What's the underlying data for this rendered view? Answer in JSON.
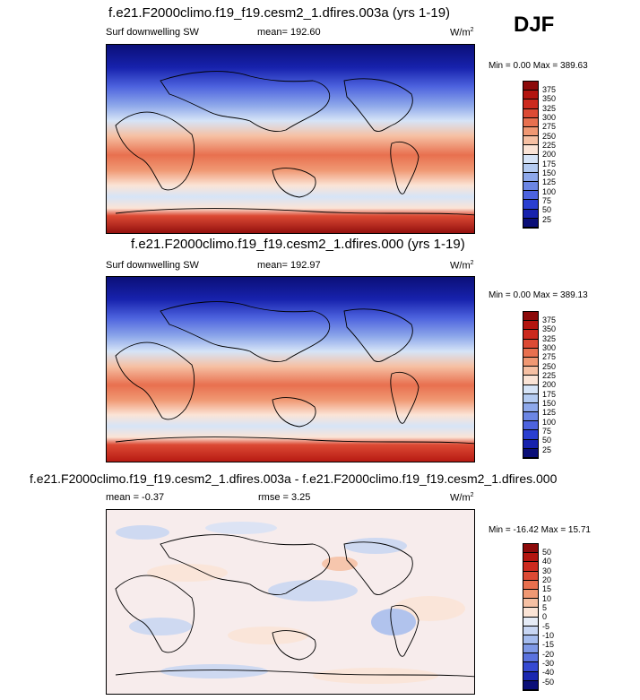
{
  "season": "DJF",
  "panels": [
    {
      "title": "f.e21.F2000climo.f19_f19.cesm2_1.dfires.003a (yrs 1-19)",
      "left_label": "Surf downwelling SW",
      "mid_label": "mean= 192.60",
      "units": "W/m",
      "units_sup": "2",
      "minmax": "Min =   0.00 Max = 389.63",
      "colorbar_labels": [
        "375",
        "350",
        "325",
        "300",
        "275",
        "250",
        "225",
        "200",
        "175",
        "150",
        "125",
        "100",
        "75",
        "50",
        "25"
      ],
      "colorbar_colors": [
        "#8c0a0a",
        "#b3150f",
        "#cc2a1e",
        "#dc4a34",
        "#e8704f",
        "#f09873",
        "#f6c0a3",
        "#fbe4d6",
        "#d6e4f7",
        "#b4cbf1",
        "#8ea8ea",
        "#6c86e4",
        "#4d63de",
        "#2a3fd0",
        "#1722ad",
        "#0b0f78"
      ]
    },
    {
      "title": "f.e21.F2000climo.f19_f19.cesm2_1.dfires.000 (yrs 1-19)",
      "left_label": "Surf downwelling SW",
      "mid_label": "mean= 192.97",
      "units": "W/m",
      "units_sup": "2",
      "minmax": "Min =   0.00 Max = 389.13",
      "colorbar_labels": [
        "375",
        "350",
        "325",
        "300",
        "275",
        "250",
        "225",
        "200",
        "175",
        "150",
        "125",
        "100",
        "75",
        "50",
        "25"
      ],
      "colorbar_colors": [
        "#8c0a0a",
        "#b3150f",
        "#cc2a1e",
        "#dc4a34",
        "#e8704f",
        "#f09873",
        "#f6c0a3",
        "#fbe4d6",
        "#d6e4f7",
        "#b4cbf1",
        "#8ea8ea",
        "#6c86e4",
        "#4d63de",
        "#2a3fd0",
        "#1722ad",
        "#0b0f78"
      ]
    },
    {
      "title": "f.e21.F2000climo.f19_f19.cesm2_1.dfires.003a - f.e21.F2000climo.f19_f19.cesm2_1.dfires.000",
      "left_label": "mean =  -0.37",
      "mid_label": "rmse =  3.25",
      "units": "W/m",
      "units_sup": "2",
      "minmax": "Min = -16.42 Max =  15.71",
      "colorbar_labels": [
        "50",
        "40",
        "30",
        "20",
        "15",
        "10",
        "5",
        "0",
        "-5",
        "-10",
        "-15",
        "-20",
        "-30",
        "-40",
        "-50"
      ],
      "colorbar_colors": [
        "#8c0a0a",
        "#b3150f",
        "#cc2a1e",
        "#dc4a34",
        "#e8704f",
        "#f09873",
        "#f6c0a3",
        "#fbe4d6",
        "#e6ecf7",
        "#c8d6f3",
        "#a5bcee",
        "#7f99e6",
        "#5a72de",
        "#3549d1",
        "#1a27b0",
        "#0b0f78"
      ]
    }
  ]
}
